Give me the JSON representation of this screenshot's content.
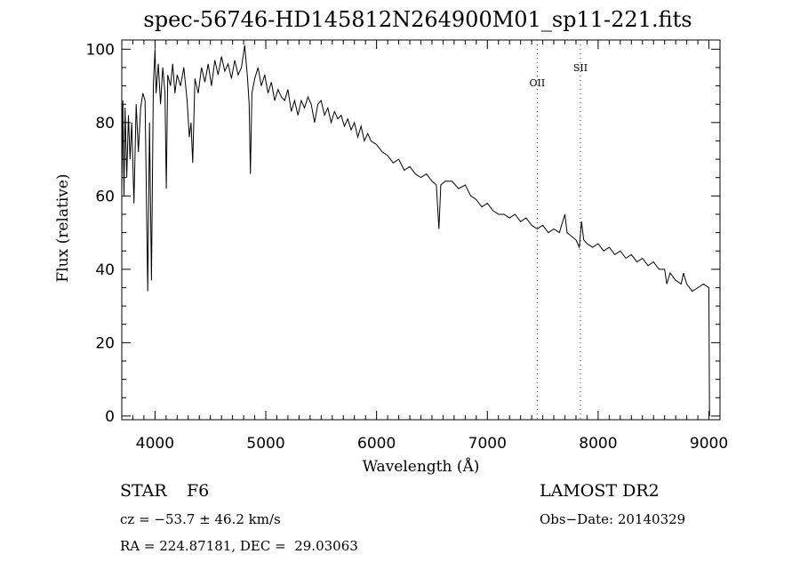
{
  "chart_data": {
    "type": "line",
    "title": "spec-56746-HD145812N264900M01_sp11-221.fits",
    "xlabel": "Wavelength (Å)",
    "ylabel": "Flux (relative)",
    "xlim": [
      3700,
      9100
    ],
    "ylim": [
      -1,
      102.5
    ],
    "xticks": [
      4000,
      5000,
      6000,
      7000,
      8000,
      9000
    ],
    "xtick_labels": [
      "4000",
      "5000",
      "6000",
      "7000",
      "8000",
      "9000"
    ],
    "yticks": [
      0,
      20,
      40,
      60,
      80,
      100
    ],
    "ytick_labels": [
      "0",
      "20",
      "40",
      "60",
      "80",
      "100"
    ],
    "grid": false,
    "series": [
      {
        "name": "spectrum",
        "x": [
          3700,
          3710,
          3720,
          3730,
          3745,
          3760,
          3775,
          3790,
          3810,
          3830,
          3850,
          3870,
          3890,
          3910,
          3934,
          3950,
          3968,
          3985,
          4000,
          4010,
          4030,
          4050,
          4070,
          4090,
          4102,
          4115,
          4140,
          4160,
          4180,
          4200,
          4230,
          4260,
          4290,
          4310,
          4325,
          4340,
          4360,
          4390,
          4420,
          4450,
          4480,
          4510,
          4540,
          4570,
          4600,
          4630,
          4660,
          4690,
          4720,
          4750,
          4780,
          4810,
          4835,
          4850,
          4861,
          4875,
          4900,
          4930,
          4960,
          4990,
          5020,
          5050,
          5080,
          5110,
          5140,
          5170,
          5200,
          5230,
          5260,
          5290,
          5320,
          5350,
          5380,
          5410,
          5440,
          5470,
          5500,
          5530,
          5560,
          5590,
          5620,
          5650,
          5680,
          5710,
          5740,
          5770,
          5800,
          5830,
          5860,
          5890,
          5920,
          5950,
          6000,
          6050,
          6100,
          6150,
          6200,
          6250,
          6300,
          6350,
          6400,
          6450,
          6500,
          6540,
          6563,
          6580,
          6620,
          6680,
          6740,
          6800,
          6850,
          6900,
          6950,
          7000,
          7050,
          7100,
          7150,
          7200,
          7250,
          7300,
          7350,
          7400,
          7450,
          7500,
          7550,
          7600,
          7650,
          7700,
          7720,
          7760,
          7800,
          7830,
          7850,
          7870,
          7900,
          7950,
          8000,
          8050,
          8100,
          8150,
          8200,
          8250,
          8300,
          8350,
          8400,
          8450,
          8500,
          8550,
          8600,
          8620,
          8650,
          8700,
          8750,
          8770,
          8800,
          8850,
          8900,
          8950,
          9000,
          9005
        ],
        "y": [
          62,
          86,
          60,
          84,
          65,
          82,
          70,
          80,
          58,
          85,
          72,
          84,
          88,
          86,
          34,
          80,
          37,
          90,
          100,
          88,
          96,
          85,
          95,
          88,
          62,
          93,
          90,
          96,
          88,
          93,
          90,
          95,
          86,
          76,
          80,
          69,
          92,
          88,
          95,
          91,
          96,
          90,
          97,
          93,
          98,
          94,
          96,
          92,
          97,
          93,
          95,
          101,
          92,
          85,
          66,
          88,
          92,
          95,
          90,
          93,
          88,
          91,
          86,
          89,
          87,
          86,
          89,
          83,
          86,
          82,
          86,
          84,
          87,
          85,
          80,
          85,
          86,
          82,
          84,
          80,
          83,
          81,
          82,
          79,
          81,
          78,
          80,
          76,
          79,
          75,
          77,
          75,
          74,
          72,
          71,
          69,
          70,
          67,
          68,
          66,
          65,
          66,
          64,
          63,
          51,
          63,
          64,
          64,
          62,
          63,
          60,
          59,
          57,
          58,
          56,
          55,
          55,
          54,
          55,
          53,
          54,
          52,
          51,
          52,
          50,
          51,
          50,
          55,
          50,
          49,
          48,
          46,
          53,
          48,
          47,
          46,
          47,
          45,
          46,
          44,
          45,
          43,
          44,
          42,
          43,
          41,
          42,
          40,
          40,
          36,
          39,
          37,
          36,
          39,
          36,
          34,
          35,
          36,
          35,
          0
        ]
      }
    ],
    "line_markers": [
      {
        "label": "OII",
        "x": 7450
      },
      {
        "label": "SII",
        "x": 7840
      }
    ]
  },
  "info": {
    "class_label": "STAR",
    "subclass": "F6",
    "survey": "LAMOST DR2",
    "cz": "cz = −53.7 ± 46.2 km/s",
    "obs_date": "Obs−Date: 20140329",
    "coords": "RA = 224.87181, DEC =  29.03063"
  }
}
